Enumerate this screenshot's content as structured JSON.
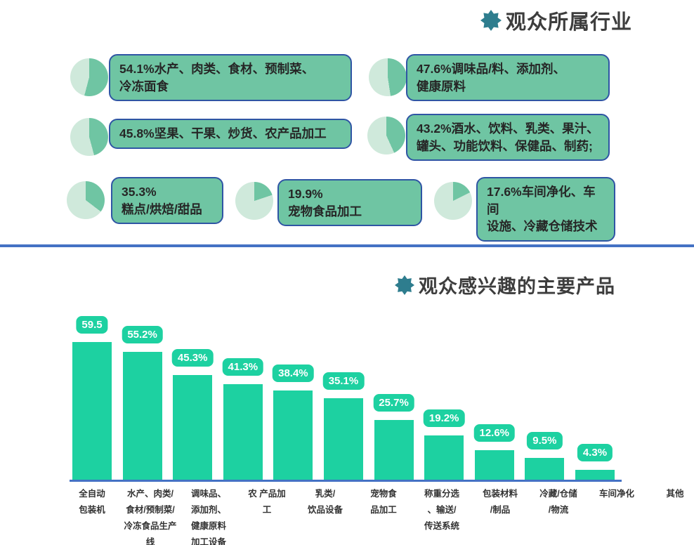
{
  "colors": {
    "box_green": "#6fc5a3",
    "box_border": "#2f55a4",
    "pie_dark": "#6fc5a3",
    "pie_light": "#cfe9db",
    "bar_green": "#1dd1a1",
    "divider_blue": "#4472c4",
    "title_text": "#3d3d3d",
    "star_teal": "#2e7d8e"
  },
  "section_industries": {
    "title": "观众所属行业",
    "items": [
      {
        "pct": 54.1,
        "text": "54.1%水产、肉类、食材、预制菜、\n冷冻面食"
      },
      {
        "pct": 47.6,
        "text": "47.6%调味品/料、添加剂、\n健康原料"
      },
      {
        "pct": 45.8,
        "text": "45.8%坚果、干果、炒货、农产品加工"
      },
      {
        "pct": 43.2,
        "text": "43.2%酒水、饮料、乳类、果汁、\n罐头、功能饮料、保健品、制药;"
      },
      {
        "pct": 35.3,
        "text": "35.3%\n糕点/烘焙/甜品"
      },
      {
        "pct": 19.9,
        "text": "19.9%\n宠物食品加工"
      },
      {
        "pct": 17.6,
        "text": "17.6%车间净化、车间\n设施、冷藏仓储技术"
      }
    ]
  },
  "section_products": {
    "title": "观众感兴趣的主要产品"
  },
  "chart_data": {
    "type": "bar",
    "title": "观众感兴趣的主要产品",
    "categories": [
      "全自动包装机",
      "水产、肉类/食材/预制菜/冷冻食品生产线",
      "调味品、添加剂、健康原料加工设备",
      "农 产品加工",
      "乳类/饮品设备",
      "宠物食品加工",
      "称重分选、输送/传送系统",
      "包装材料/制品",
      "冷藏/仓储/物流",
      "车间净化",
      "其他"
    ],
    "values": [
      59.5,
      55.2,
      45.3,
      41.3,
      38.4,
      35.1,
      25.7,
      19.2,
      12.6,
      9.5,
      4.3
    ],
    "value_labels": [
      "59.5",
      "55.2%",
      "45.3%",
      "41.3%",
      "38.4%",
      "35.1%",
      "25.7%",
      "19.2%",
      "12.6%",
      "9.5%",
      "4.3%"
    ],
    "category_labels": [
      "全自动\n包装机",
      "水产、肉类/\n食材/预制菜/\n冷冻食品生产\n线",
      "调味品、\n添加剂、\n健康原料\n加工设备",
      "农 产品加\n工",
      "乳类/\n饮品设备",
      "宠物食\n品加工",
      "称重分选\n、输送/\n传送系统",
      "包装材料\n/制品",
      "冷藏/仓储\n/物流",
      "车间净化",
      "其他"
    ],
    "xlabel": "",
    "ylabel": "",
    "ylim": [
      0,
      65
    ],
    "grid": false,
    "legend": null
  }
}
